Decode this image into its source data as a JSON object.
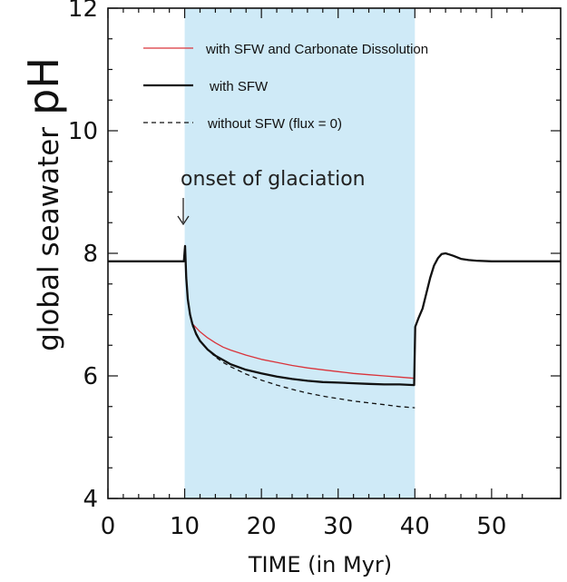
{
  "chart_data": {
    "type": "line",
    "xlabel": "TIME (in Myr)",
    "ylabel": "global seawater",
    "ylabel_emphasis": "pH",
    "xlim": [
      0,
      59
    ],
    "ylim": [
      4,
      12
    ],
    "xticks": [
      0,
      10,
      20,
      30,
      40,
      50
    ],
    "yticks": [
      4,
      6,
      8,
      10,
      12
    ],
    "grid": false,
    "legend_position": "top-left",
    "shaded_region": {
      "x_start": 10,
      "x_end": 40,
      "color": "#cfeaf7"
    },
    "annotation": {
      "text": "onset of glaciation",
      "x": 10,
      "y": 8.1,
      "arrow": "down"
    },
    "series": [
      {
        "name": "with SFW and Carbonate Dissolution",
        "color": "#d9343b",
        "style": "solid",
        "x": [
          10.4,
          11,
          12,
          13,
          14,
          15,
          16,
          18,
          20,
          22,
          24,
          26,
          28,
          30,
          32,
          34,
          36,
          38,
          40
        ],
        "y": [
          7.2,
          6.85,
          6.72,
          6.62,
          6.54,
          6.47,
          6.42,
          6.34,
          6.27,
          6.22,
          6.17,
          6.13,
          6.1,
          6.07,
          6.04,
          6.02,
          6.0,
          5.98,
          5.96
        ]
      },
      {
        "name": "with SFW",
        "color": "#111111",
        "style": "solid",
        "x": [
          0,
          5,
          9.9,
          10.05,
          10.2,
          10.4,
          10.7,
          11,
          11.5,
          12,
          13,
          14,
          15,
          16,
          18,
          20,
          22,
          24,
          26,
          28,
          30,
          32,
          34,
          36,
          38,
          39.9,
          40.05,
          40.5,
          41,
          41.5,
          42,
          42.5,
          43,
          43.5,
          44,
          44.5,
          45,
          46,
          47,
          48,
          50,
          55,
          59
        ],
        "y": [
          7.87,
          7.87,
          7.87,
          8.12,
          7.6,
          7.25,
          7.0,
          6.85,
          6.68,
          6.57,
          6.43,
          6.33,
          6.26,
          6.19,
          6.1,
          6.04,
          5.99,
          5.95,
          5.92,
          5.9,
          5.89,
          5.88,
          5.87,
          5.86,
          5.86,
          5.85,
          6.8,
          6.95,
          7.1,
          7.35,
          7.6,
          7.8,
          7.92,
          7.99,
          8.0,
          7.98,
          7.96,
          7.91,
          7.89,
          7.88,
          7.87,
          7.87,
          7.87
        ]
      },
      {
        "name": "without SFW (flux = 0)",
        "color": "#111111",
        "style": "dashed",
        "x": [
          11,
          12,
          13,
          14,
          15,
          16,
          18,
          20,
          22,
          24,
          26,
          28,
          30,
          32,
          34,
          36,
          38,
          40
        ],
        "y": [
          6.82,
          6.58,
          6.43,
          6.31,
          6.22,
          6.15,
          6.03,
          5.93,
          5.85,
          5.78,
          5.72,
          5.67,
          5.63,
          5.59,
          5.56,
          5.53,
          5.5,
          5.48
        ]
      }
    ]
  }
}
